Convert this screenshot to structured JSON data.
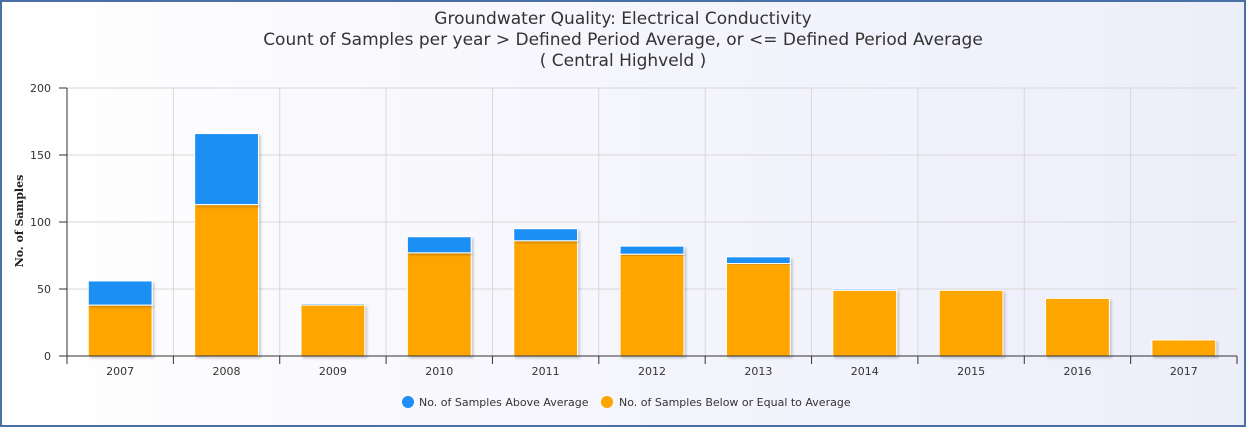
{
  "chart_data": {
    "type": "bar",
    "stacked": true,
    "title": "Groundwater Quality: Electrical Conductivity",
    "subtitle": "Count of Samples per year > Defined Period Average, or <= Defined Period Average",
    "subtitle2": "( Central Highveld )",
    "xlabel": "",
    "ylabel": "No. of Samples",
    "ylim": [
      0,
      200
    ],
    "yticks": [
      0,
      50,
      100,
      150,
      200
    ],
    "grid": true,
    "legend_position": "bottom-center",
    "categories": [
      "2007",
      "2008",
      "2009",
      "2010",
      "2011",
      "2012",
      "2013",
      "2014",
      "2015",
      "2016",
      "2017"
    ],
    "series": [
      {
        "name": "No. of Samples Above Average",
        "color": "#1f8ff5",
        "values": [
          18,
          53,
          1,
          12,
          9,
          6,
          5,
          1,
          0,
          0,
          0
        ]
      },
      {
        "name": "No. of Samples Below or Equal to Average",
        "color": "#ffa500",
        "values": [
          38,
          113,
          38,
          77,
          86,
          76,
          69,
          49,
          49,
          43,
          12
        ]
      }
    ]
  }
}
